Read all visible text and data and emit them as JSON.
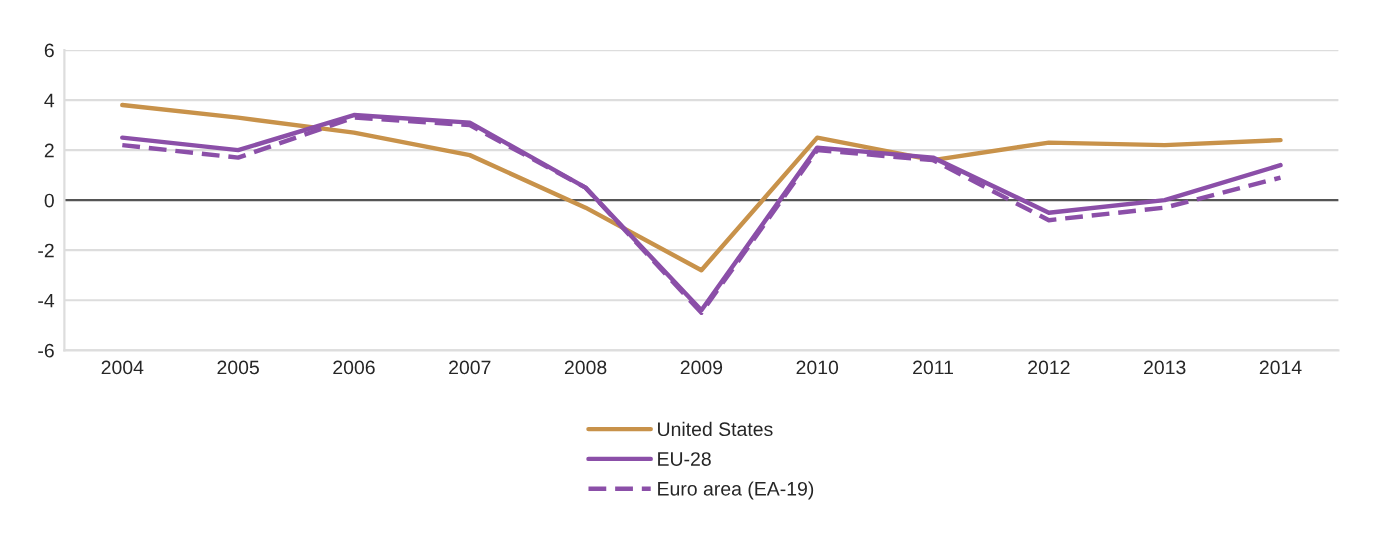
{
  "chart_data": {
    "type": "line",
    "categories": [
      "2004",
      "2005",
      "2006",
      "2007",
      "2008",
      "2009",
      "2010",
      "2011",
      "2012",
      "2013",
      "2014"
    ],
    "series": [
      {
        "name": "United States",
        "color": "#c8924a",
        "line_style": "solid",
        "values": [
          3.8,
          3.3,
          2.7,
          1.8,
          -0.3,
          -2.8,
          2.5,
          1.6,
          2.3,
          2.2,
          2.4
        ]
      },
      {
        "name": "EU-28",
        "color": "#8b4fa8",
        "line_style": "solid",
        "values": [
          2.5,
          2.0,
          3.4,
          3.1,
          0.5,
          -4.4,
          2.1,
          1.7,
          -0.5,
          0.0,
          1.4
        ]
      },
      {
        "name": "Euro area (EA-19)",
        "color": "#8b4fa8",
        "line_style": "dashed",
        "values": [
          2.2,
          1.7,
          3.3,
          3.0,
          0.5,
          -4.5,
          2.0,
          1.6,
          -0.8,
          -0.3,
          0.9
        ]
      }
    ],
    "ylim": [
      -6,
      6
    ],
    "yticks": [
      -6,
      -4,
      -2,
      0,
      2,
      4,
      6
    ],
    "grid": "y",
    "legend": "bottom",
    "marker": "none"
  }
}
